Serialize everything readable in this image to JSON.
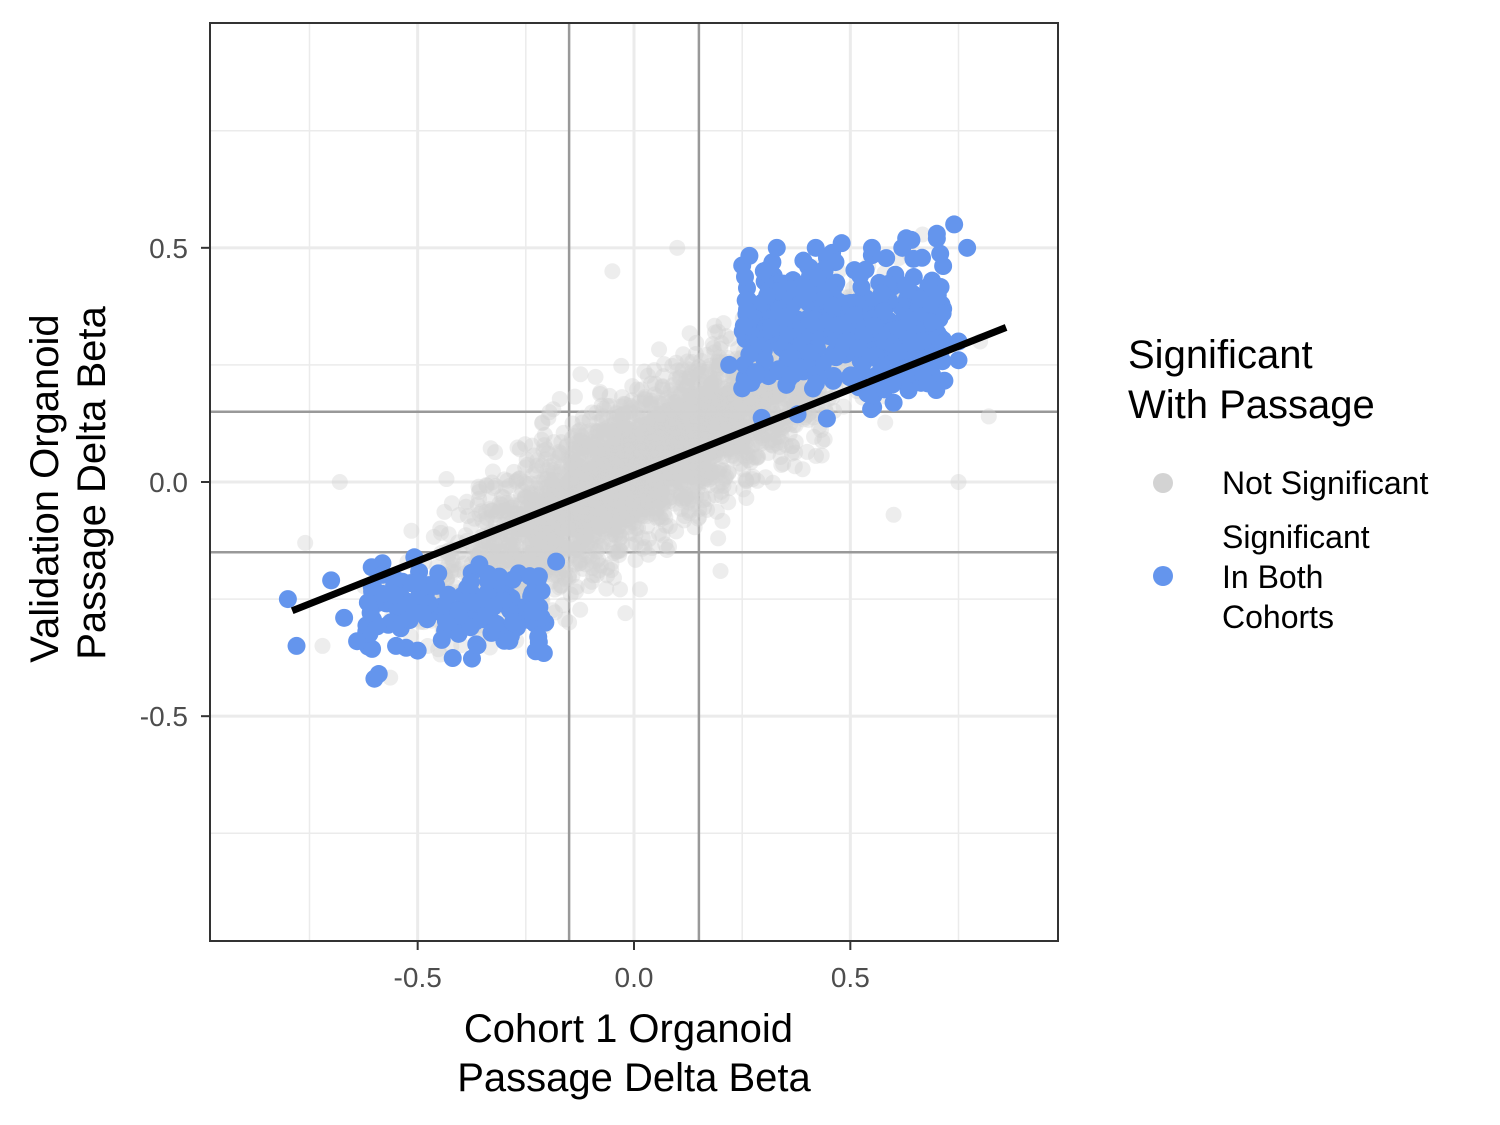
{
  "chart_data": {
    "type": "scatter",
    "xlabel": [
      "Cohort 1 Organoid",
      "Passage Delta Beta"
    ],
    "ylabel": [
      "Validation Organoid",
      "Passage Delta Beta"
    ],
    "xlim": [
      -0.98,
      0.98
    ],
    "ylim": [
      -0.98,
      0.98
    ],
    "x_ticks": [
      {
        "value": -0.5,
        "label": "-0.5"
      },
      {
        "value": 0.0,
        "label": "0.0"
      },
      {
        "value": 0.5,
        "label": "0.5"
      }
    ],
    "y_ticks": [
      {
        "value": 0.5,
        "label": "0.5"
      },
      {
        "value": 0.0,
        "label": "0.0"
      },
      {
        "value": -0.5,
        "label": "-0.5"
      }
    ],
    "minor_grid": [
      -0.75,
      -0.25,
      0.25,
      0.75
    ],
    "reference_lines": {
      "vertical": [
        -0.15,
        0.15
      ],
      "horizontal": [
        -0.15,
        0.15
      ],
      "color": "#999999"
    },
    "grid": true,
    "legend": {
      "title": [
        "Significant",
        "With Passage"
      ],
      "position": "right",
      "entries": [
        {
          "label": [
            "Not Significant"
          ],
          "color": "#d3d3d3"
        },
        {
          "label": [
            "Significant",
            "In Both",
            "Cohorts"
          ],
          "color": "#6495ed"
        }
      ]
    },
    "series": [
      {
        "name": "Not Significant",
        "color": "#d3d3d3",
        "opacity": 0.4,
        "cloud": {
          "x_range": [
            -0.72,
            0.8
          ],
          "slope": 0.55,
          "intercept": 0.03,
          "spread": 0.085,
          "count": 3000
        },
        "points": [
          {
            "x": 0.1,
            "y": 0.5
          },
          {
            "x": -0.05,
            "y": 0.45
          },
          {
            "x": 0.8,
            "y": 0.3
          },
          {
            "x": 0.75,
            "y": 0.0
          },
          {
            "x": 0.6,
            "y": -0.07
          },
          {
            "x": -0.76,
            "y": -0.13
          },
          {
            "x": -0.72,
            "y": -0.35
          },
          {
            "x": 0.82,
            "y": 0.14
          },
          {
            "x": -0.15,
            "y": -0.3
          },
          {
            "x": -0.02,
            "y": -0.28
          },
          {
            "x": 0.2,
            "y": -0.19
          },
          {
            "x": -0.68,
            "y": 0.0
          }
        ]
      },
      {
        "name": "Significant In Both Cohorts",
        "color": "#6495ed",
        "opacity": 1,
        "clusters": [
          {
            "x_range": [
              0.25,
              0.72
            ],
            "y_center": 0.33,
            "y_spread": 0.07,
            "count": 420
          },
          {
            "x_range": [
              -0.62,
              -0.2
            ],
            "y_center": -0.26,
            "y_spread": 0.05,
            "count": 150
          }
        ],
        "points": [
          {
            "x": 0.33,
            "y": 0.5
          },
          {
            "x": 0.42,
            "y": 0.5
          },
          {
            "x": 0.48,
            "y": 0.51
          },
          {
            "x": 0.55,
            "y": 0.5
          },
          {
            "x": 0.62,
            "y": 0.5
          },
          {
            "x": 0.7,
            "y": 0.52
          },
          {
            "x": 0.74,
            "y": 0.55
          },
          {
            "x": 0.77,
            "y": 0.5
          },
          {
            "x": 0.3,
            "y": 0.45
          },
          {
            "x": 0.7,
            "y": 0.53
          },
          {
            "x": 0.75,
            "y": 0.3
          },
          {
            "x": 0.75,
            "y": 0.26
          },
          {
            "x": 0.22,
            "y": 0.25
          },
          {
            "x": 0.25,
            "y": 0.2
          },
          {
            "x": -0.8,
            "y": -0.25
          },
          {
            "x": -0.78,
            "y": -0.35
          },
          {
            "x": -0.7,
            "y": -0.21
          },
          {
            "x": -0.67,
            "y": -0.29
          },
          {
            "x": -0.6,
            "y": -0.42
          },
          {
            "x": -0.59,
            "y": -0.41
          },
          {
            "x": -0.5,
            "y": -0.36
          },
          {
            "x": -0.28,
            "y": -0.3
          },
          {
            "x": -0.18,
            "y": -0.17
          },
          {
            "x": -0.64,
            "y": -0.34
          },
          {
            "x": -0.55,
            "y": -0.35
          }
        ]
      }
    ],
    "fit_line": {
      "x": [
        -0.79,
        0.86
      ],
      "y": [
        -0.275,
        0.33
      ],
      "color": "#000000"
    }
  }
}
